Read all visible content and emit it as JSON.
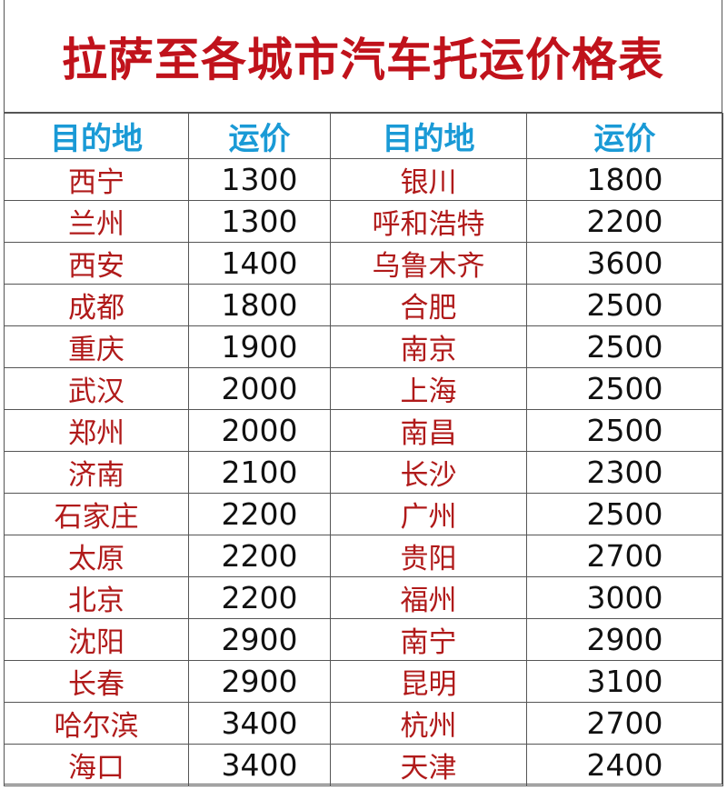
{
  "title": "拉萨至各城市汽车托运价格表",
  "headers": [
    "目的地",
    "运价",
    "目的地",
    "运价"
  ],
  "colors": {
    "title": "#c0121b",
    "header": "#1a9ad6",
    "city": "#b01a1a",
    "price": "#111111"
  },
  "rows": [
    {
      "city1": "西宁",
      "price1": "1300",
      "city2": "银川",
      "price2": "1800"
    },
    {
      "city1": "兰州",
      "price1": "1300",
      "city2": "呼和浩特",
      "price2": "2200"
    },
    {
      "city1": "西安",
      "price1": "1400",
      "city2": "乌鲁木齐",
      "price2": "3600"
    },
    {
      "city1": "成都",
      "price1": "1800",
      "city2": "合肥",
      "price2": "2500"
    },
    {
      "city1": "重庆",
      "price1": "1900",
      "city2": "南京",
      "price2": "2500"
    },
    {
      "city1": "武汉",
      "price1": "2000",
      "city2": "上海",
      "price2": "2500"
    },
    {
      "city1": "郑州",
      "price1": "2000",
      "city2": "南昌",
      "price2": "2500"
    },
    {
      "city1": "济南",
      "price1": "2100",
      "city2": "长沙",
      "price2": "2300"
    },
    {
      "city1": "石家庄",
      "price1": "2200",
      "city2": "广州",
      "price2": "2500"
    },
    {
      "city1": "太原",
      "price1": "2200",
      "city2": "贵阳",
      "price2": "2700"
    },
    {
      "city1": "北京",
      "price1": "2200",
      "city2": "福州",
      "price2": "3000"
    },
    {
      "city1": "沈阳",
      "price1": "2900",
      "city2": "南宁",
      "price2": "2900"
    },
    {
      "city1": "长春",
      "price1": "2900",
      "city2": "昆明",
      "price2": "3100"
    },
    {
      "city1": "哈尔滨",
      "price1": "3400",
      "city2": "杭州",
      "price2": "2700"
    },
    {
      "city1": "海口",
      "price1": "3400",
      "city2": "天津",
      "price2": "2400"
    }
  ]
}
